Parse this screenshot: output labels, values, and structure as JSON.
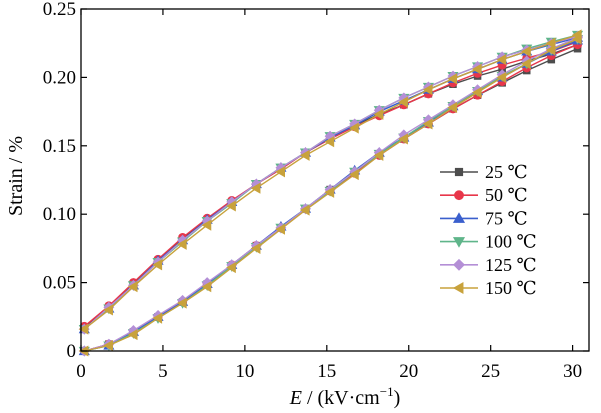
{
  "chart_data": {
    "type": "line",
    "title": "",
    "xlabel_italic": "E",
    "xlabel_rest": " / (kV·cm",
    "xlabel_sup": "−1",
    "xlabel_close": ")",
    "ylabel": "Strain / %",
    "xlim": [
      0,
      31
    ],
    "ylim": [
      0,
      0.25
    ],
    "xticks": [
      0,
      5,
      10,
      15,
      20,
      25,
      30
    ],
    "yticks": [
      0,
      0.05,
      0.1,
      0.15,
      0.2,
      0.25
    ],
    "ytick_labels": [
      "0",
      "0.05",
      "0.10",
      "0.15",
      "0.20",
      "0.25"
    ],
    "grid": false,
    "legend_position": "lower-right",
    "x": [
      0.2,
      1.7,
      3.2,
      4.7,
      6.2,
      7.7,
      9.2,
      10.7,
      12.2,
      13.7,
      15.2,
      16.7,
      18.2,
      19.7,
      21.2,
      22.7,
      24.2,
      25.7,
      27.2,
      28.7,
      30.3
    ],
    "series": [
      {
        "name": "25 ℃",
        "color": "#4d4d4d",
        "marker": "square",
        "ascending": [
          0.0,
          0.005,
          0.014,
          0.025,
          0.036,
          0.049,
          0.062,
          0.077,
          0.09,
          0.104,
          0.118,
          0.13,
          0.144,
          0.155,
          0.166,
          0.177,
          0.187,
          0.196,
          0.205,
          0.213,
          0.221
        ],
        "descending": [
          0.017,
          0.032,
          0.049,
          0.066,
          0.082,
          0.096,
          0.109,
          0.122,
          0.134,
          0.145,
          0.156,
          0.165,
          0.173,
          0.18,
          0.188,
          0.195,
          0.201,
          0.206,
          0.212,
          0.217,
          0.224
        ]
      },
      {
        "name": "50 ℃",
        "color": "#e8364a",
        "marker": "circle",
        "ascending": [
          0.0,
          0.005,
          0.014,
          0.025,
          0.036,
          0.049,
          0.063,
          0.077,
          0.09,
          0.104,
          0.117,
          0.13,
          0.143,
          0.155,
          0.166,
          0.177,
          0.187,
          0.197,
          0.207,
          0.216,
          0.224
        ],
        "descending": [
          0.018,
          0.033,
          0.05,
          0.067,
          0.083,
          0.097,
          0.11,
          0.122,
          0.133,
          0.145,
          0.155,
          0.164,
          0.172,
          0.18,
          0.188,
          0.196,
          0.203,
          0.209,
          0.214,
          0.219,
          0.226
        ]
      },
      {
        "name": "75 ℃",
        "color": "#3a5fcd",
        "marker": "triangle-up",
        "ascending": [
          0.0,
          0.004,
          0.014,
          0.025,
          0.036,
          0.049,
          0.063,
          0.077,
          0.091,
          0.104,
          0.118,
          0.132,
          0.145,
          0.156,
          0.167,
          0.179,
          0.19,
          0.2,
          0.21,
          0.219,
          0.227
        ],
        "descending": [
          0.016,
          0.031,
          0.048,
          0.066,
          0.081,
          0.096,
          0.109,
          0.122,
          0.134,
          0.145,
          0.156,
          0.165,
          0.175,
          0.183,
          0.191,
          0.199,
          0.206,
          0.213,
          0.219,
          0.224,
          0.229
        ]
      },
      {
        "name": "100 ℃",
        "color": "#5fb58a",
        "marker": "triangle-down",
        "ascending": [
          0.0,
          0.004,
          0.013,
          0.024,
          0.035,
          0.048,
          0.062,
          0.076,
          0.09,
          0.104,
          0.117,
          0.131,
          0.144,
          0.156,
          0.168,
          0.179,
          0.19,
          0.201,
          0.21,
          0.22,
          0.228
        ],
        "descending": [
          0.016,
          0.031,
          0.048,
          0.065,
          0.08,
          0.095,
          0.108,
          0.122,
          0.134,
          0.145,
          0.157,
          0.166,
          0.176,
          0.185,
          0.193,
          0.201,
          0.208,
          0.215,
          0.221,
          0.226,
          0.231
        ]
      },
      {
        "name": "125 ℃",
        "color": "#b48fd6",
        "marker": "diamond",
        "ascending": [
          0.0,
          0.005,
          0.015,
          0.026,
          0.037,
          0.05,
          0.063,
          0.077,
          0.09,
          0.104,
          0.118,
          0.131,
          0.145,
          0.158,
          0.169,
          0.18,
          0.191,
          0.202,
          0.212,
          0.221,
          0.229
        ],
        "descending": [
          0.016,
          0.032,
          0.048,
          0.065,
          0.081,
          0.095,
          0.109,
          0.122,
          0.134,
          0.145,
          0.157,
          0.166,
          0.176,
          0.185,
          0.193,
          0.201,
          0.208,
          0.215,
          0.22,
          0.225,
          0.23
        ]
      },
      {
        "name": "150 ℃",
        "color": "#c8a23c",
        "marker": "triangle-left",
        "ascending": [
          0.0,
          0.004,
          0.012,
          0.024,
          0.035,
          0.047,
          0.061,
          0.075,
          0.089,
          0.103,
          0.116,
          0.129,
          0.143,
          0.155,
          0.166,
          0.178,
          0.189,
          0.2,
          0.21,
          0.22,
          0.228
        ],
        "descending": [
          0.016,
          0.03,
          0.047,
          0.063,
          0.078,
          0.092,
          0.106,
          0.119,
          0.131,
          0.143,
          0.153,
          0.163,
          0.173,
          0.182,
          0.191,
          0.199,
          0.206,
          0.213,
          0.219,
          0.225,
          0.231
        ]
      }
    ]
  }
}
